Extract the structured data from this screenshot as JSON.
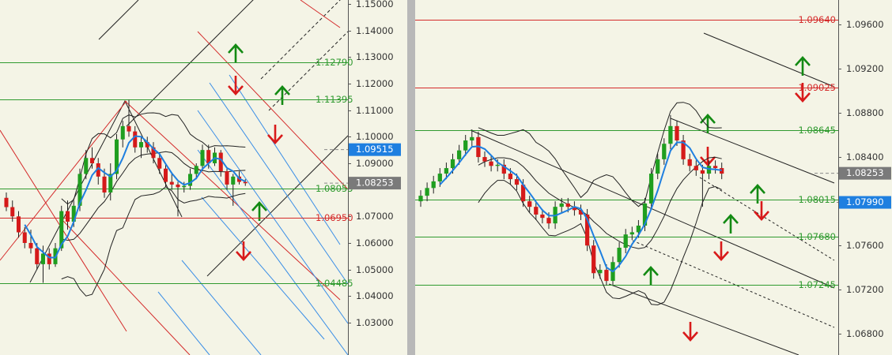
{
  "chart_data": [
    {
      "type": "candlestick",
      "ylim": [
        1.0178,
        1.1515
      ],
      "yticks": [
        {
          "value": 1.15,
          "label": "1.15000"
        },
        {
          "value": 1.14,
          "label": "1.14000"
        },
        {
          "value": 1.13,
          "label": "1.13000"
        },
        {
          "value": 1.12,
          "label": "1.12000"
        },
        {
          "value": 1.11,
          "label": "1.11000"
        },
        {
          "value": 1.1,
          "label": "1.10000"
        },
        {
          "value": 1.09,
          "label": "1.09000"
        },
        {
          "value": 1.07,
          "label": "1.07000"
        },
        {
          "value": 1.06,
          "label": "1.06000"
        },
        {
          "value": 1.05,
          "label": "1.05000"
        },
        {
          "value": 1.04,
          "label": "1.04000"
        },
        {
          "value": 1.03,
          "label": "1.03000"
        }
      ],
      "up_color": "#1f9e1f",
      "down_color": "#d51a1a",
      "ohlc": [
        [
          1.077,
          1.079,
          1.072,
          1.0735
        ],
        [
          1.0735,
          1.076,
          1.068,
          1.07
        ],
        [
          1.07,
          1.072,
          1.062,
          1.064
        ],
        [
          1.064,
          1.066,
          1.058,
          1.06
        ],
        [
          1.06,
          1.065,
          1.056,
          1.058
        ],
        [
          1.058,
          1.06,
          1.05,
          1.052
        ],
        [
          1.052,
          1.059,
          1.045,
          1.056
        ],
        [
          1.056,
          1.058,
          1.05,
          1.052
        ],
        [
          1.052,
          1.06,
          1.051,
          1.058
        ],
        [
          1.058,
          1.074,
          1.057,
          1.072
        ],
        [
          1.072,
          1.076,
          1.065,
          1.068
        ],
        [
          1.068,
          1.076,
          1.066,
          1.074
        ],
        [
          1.074,
          1.088,
          1.072,
          1.086
        ],
        [
          1.086,
          1.095,
          1.084,
          1.092
        ],
        [
          1.092,
          1.096,
          1.088,
          1.09
        ],
        [
          1.09,
          1.092,
          1.082,
          1.085
        ],
        [
          1.085,
          1.088,
          1.077,
          1.079
        ],
        [
          1.079,
          1.09,
          1.076,
          1.086
        ],
        [
          1.086,
          1.101,
          1.084,
          1.099
        ],
        [
          1.099,
          1.106,
          1.096,
          1.104
        ],
        [
          1.104,
          1.1139,
          1.1,
          1.102
        ],
        [
          1.102,
          1.104,
          1.094,
          1.096
        ],
        [
          1.096,
          1.1,
          1.092,
          1.098
        ],
        [
          1.098,
          1.1,
          1.094,
          1.096
        ],
        [
          1.096,
          1.098,
          1.09,
          1.092
        ],
        [
          1.092,
          1.094,
          1.086,
          1.088
        ],
        [
          1.088,
          1.09,
          1.081,
          1.083
        ],
        [
          1.083,
          1.086,
          1.08,
          1.082
        ],
        [
          1.082,
          1.083,
          1.07,
          1.081
        ],
        [
          1.081,
          1.083,
          1.079,
          1.0815
        ],
        [
          1.0815,
          1.088,
          1.08,
          1.086
        ],
        [
          1.086,
          1.09,
          1.084,
          1.089
        ],
        [
          1.089,
          1.097,
          1.087,
          1.095
        ],
        [
          1.095,
          1.097,
          1.088,
          1.09
        ],
        [
          1.09,
          1.096,
          1.089,
          1.094
        ],
        [
          1.094,
          1.095,
          1.085,
          1.087
        ],
        [
          1.087,
          1.088,
          1.08,
          1.082
        ],
        [
          1.082,
          1.086,
          1.074,
          1.085
        ],
        [
          1.085,
          1.087,
          1.082,
          1.083
        ],
        [
          1.083,
          1.084,
          1.0815,
          1.0825
        ]
      ],
      "levels": [
        {
          "value": 1.1279,
          "label": "1.12790",
          "color": "#2f9a2f"
        },
        {
          "value": 1.11395,
          "label": "1.11395",
          "color": "#2f9a2f"
        },
        {
          "value": 1.08055,
          "label": "1.08055",
          "color": "#2f9a2f"
        },
        {
          "value": 1.0695,
          "label": "1.06950",
          "color": "#d42a2a"
        },
        {
          "value": 1.04485,
          "label": "1.04485",
          "color": "#2f9a2f"
        }
      ],
      "price_marks": [
        {
          "value": 1.09515,
          "label": "1.09515",
          "color": "#1e7fe0"
        },
        {
          "value": 1.08253,
          "label": "1.08253",
          "color": "#7a7a7a"
        }
      ]
    },
    {
      "type": "candlestick",
      "ylim": [
        1.0661,
        1.0982
      ],
      "yticks": [
        {
          "value": 1.096,
          "label": "1.09600"
        },
        {
          "value": 1.092,
          "label": "1.09200"
        },
        {
          "value": 1.088,
          "label": "1.08800"
        },
        {
          "value": 1.084,
          "label": "1.08400"
        },
        {
          "value": 1.076,
          "label": "1.07600"
        },
        {
          "value": 1.072,
          "label": "1.07200"
        },
        {
          "value": 1.068,
          "label": "1.06800"
        }
      ],
      "up_color": "#1f9e1f",
      "down_color": "#d51a1a",
      "ohlc": [
        [
          1.08,
          1.081,
          1.0795,
          1.0805
        ],
        [
          1.0805,
          1.0817,
          1.08,
          1.0812
        ],
        [
          1.0812,
          1.0823,
          1.0807,
          1.0818
        ],
        [
          1.0818,
          1.083,
          1.0813,
          1.0825
        ],
        [
          1.0825,
          1.0835,
          1.082,
          1.083
        ],
        [
          1.083,
          1.0843,
          1.0825,
          1.0838
        ],
        [
          1.0838,
          1.0851,
          1.0833,
          1.0846
        ],
        [
          1.0846,
          1.086,
          1.0841,
          1.0855
        ],
        [
          1.0855,
          1.0865,
          1.085,
          1.0858
        ],
        [
          1.0858,
          1.0863,
          1.0835,
          1.084
        ],
        [
          1.084,
          1.0845,
          1.0831,
          1.0836
        ],
        [
          1.0836,
          1.0841,
          1.0827,
          1.0832
        ],
        [
          1.0832,
          1.0838,
          1.0827,
          1.0833
        ],
        [
          1.0833,
          1.0838,
          1.082,
          1.0825
        ],
        [
          1.0825,
          1.083,
          1.0815,
          1.082
        ],
        [
          1.082,
          1.0825,
          1.081,
          1.0815
        ],
        [
          1.0815,
          1.082,
          1.0795,
          1.08
        ],
        [
          1.08,
          1.0805,
          1.079,
          1.0795
        ],
        [
          1.0795,
          1.08,
          1.0783,
          1.0788
        ],
        [
          1.0788,
          1.0793,
          1.078,
          1.0785
        ],
        [
          1.0785,
          1.079,
          1.0775,
          1.078
        ],
        [
          1.078,
          1.08,
          1.0775,
          1.0795
        ],
        [
          1.0795,
          1.0803,
          1.079,
          1.0798
        ],
        [
          1.0798,
          1.0803,
          1.079,
          1.0795
        ],
        [
          1.0795,
          1.08,
          1.0787,
          1.0792
        ],
        [
          1.0792,
          1.0797,
          1.0783,
          1.0788
        ],
        [
          1.0788,
          1.0793,
          1.0755,
          1.076
        ],
        [
          1.076,
          1.0765,
          1.073,
          1.0735
        ],
        [
          1.0735,
          1.0743,
          1.073,
          1.0738
        ],
        [
          1.0738,
          1.0743,
          1.0724,
          1.0728
        ],
        [
          1.0728,
          1.075,
          1.0724,
          1.0745
        ],
        [
          1.0745,
          1.0763,
          1.074,
          1.0758
        ],
        [
          1.0758,
          1.0775,
          1.0753,
          1.077
        ],
        [
          1.077,
          1.0777,
          1.0765,
          1.0772
        ],
        [
          1.0772,
          1.0783,
          1.0767,
          1.0778
        ],
        [
          1.0778,
          1.0803,
          1.0773,
          1.0798
        ],
        [
          1.0798,
          1.083,
          1.0793,
          1.0825
        ],
        [
          1.0825,
          1.0843,
          1.082,
          1.0838
        ],
        [
          1.0838,
          1.0857,
          1.0833,
          1.0852
        ],
        [
          1.0852,
          1.0878,
          1.0847,
          1.0868
        ],
        [
          1.0868,
          1.0873,
          1.085,
          1.0855
        ],
        [
          1.0855,
          1.086,
          1.0833,
          1.0838
        ],
        [
          1.0838,
          1.0843,
          1.0827,
          1.0832
        ],
        [
          1.0832,
          1.0837,
          1.0823,
          1.0828
        ],
        [
          1.0828,
          1.0833,
          1.0795,
          1.0825
        ],
        [
          1.0825,
          1.0837,
          1.082,
          1.0832
        ],
        [
          1.0832,
          1.0837,
          1.0825,
          1.083
        ],
        [
          1.083,
          1.0835,
          1.082,
          1.0825
        ]
      ],
      "levels": [
        {
          "value": 1.0964,
          "label": "1.09640",
          "color": "#d42a2a"
        },
        {
          "value": 1.09025,
          "label": "1.09025",
          "color": "#d42a2a"
        },
        {
          "value": 1.08645,
          "label": "1.08645",
          "color": "#2f9a2f"
        },
        {
          "value": 1.08015,
          "label": "1.08015",
          "color": "#2f9a2f"
        },
        {
          "value": 1.0768,
          "label": "1.07680",
          "color": "#2f9a2f"
        },
        {
          "value": 1.07245,
          "label": "1.07245",
          "color": "#2f9a2f"
        }
      ],
      "price_marks": [
        {
          "value": 1.08253,
          "label": "1.08253",
          "color": "#7a7a7a"
        },
        {
          "value": 1.0799,
          "label": "1.07990",
          "color": "#1e7fe0"
        }
      ]
    }
  ]
}
